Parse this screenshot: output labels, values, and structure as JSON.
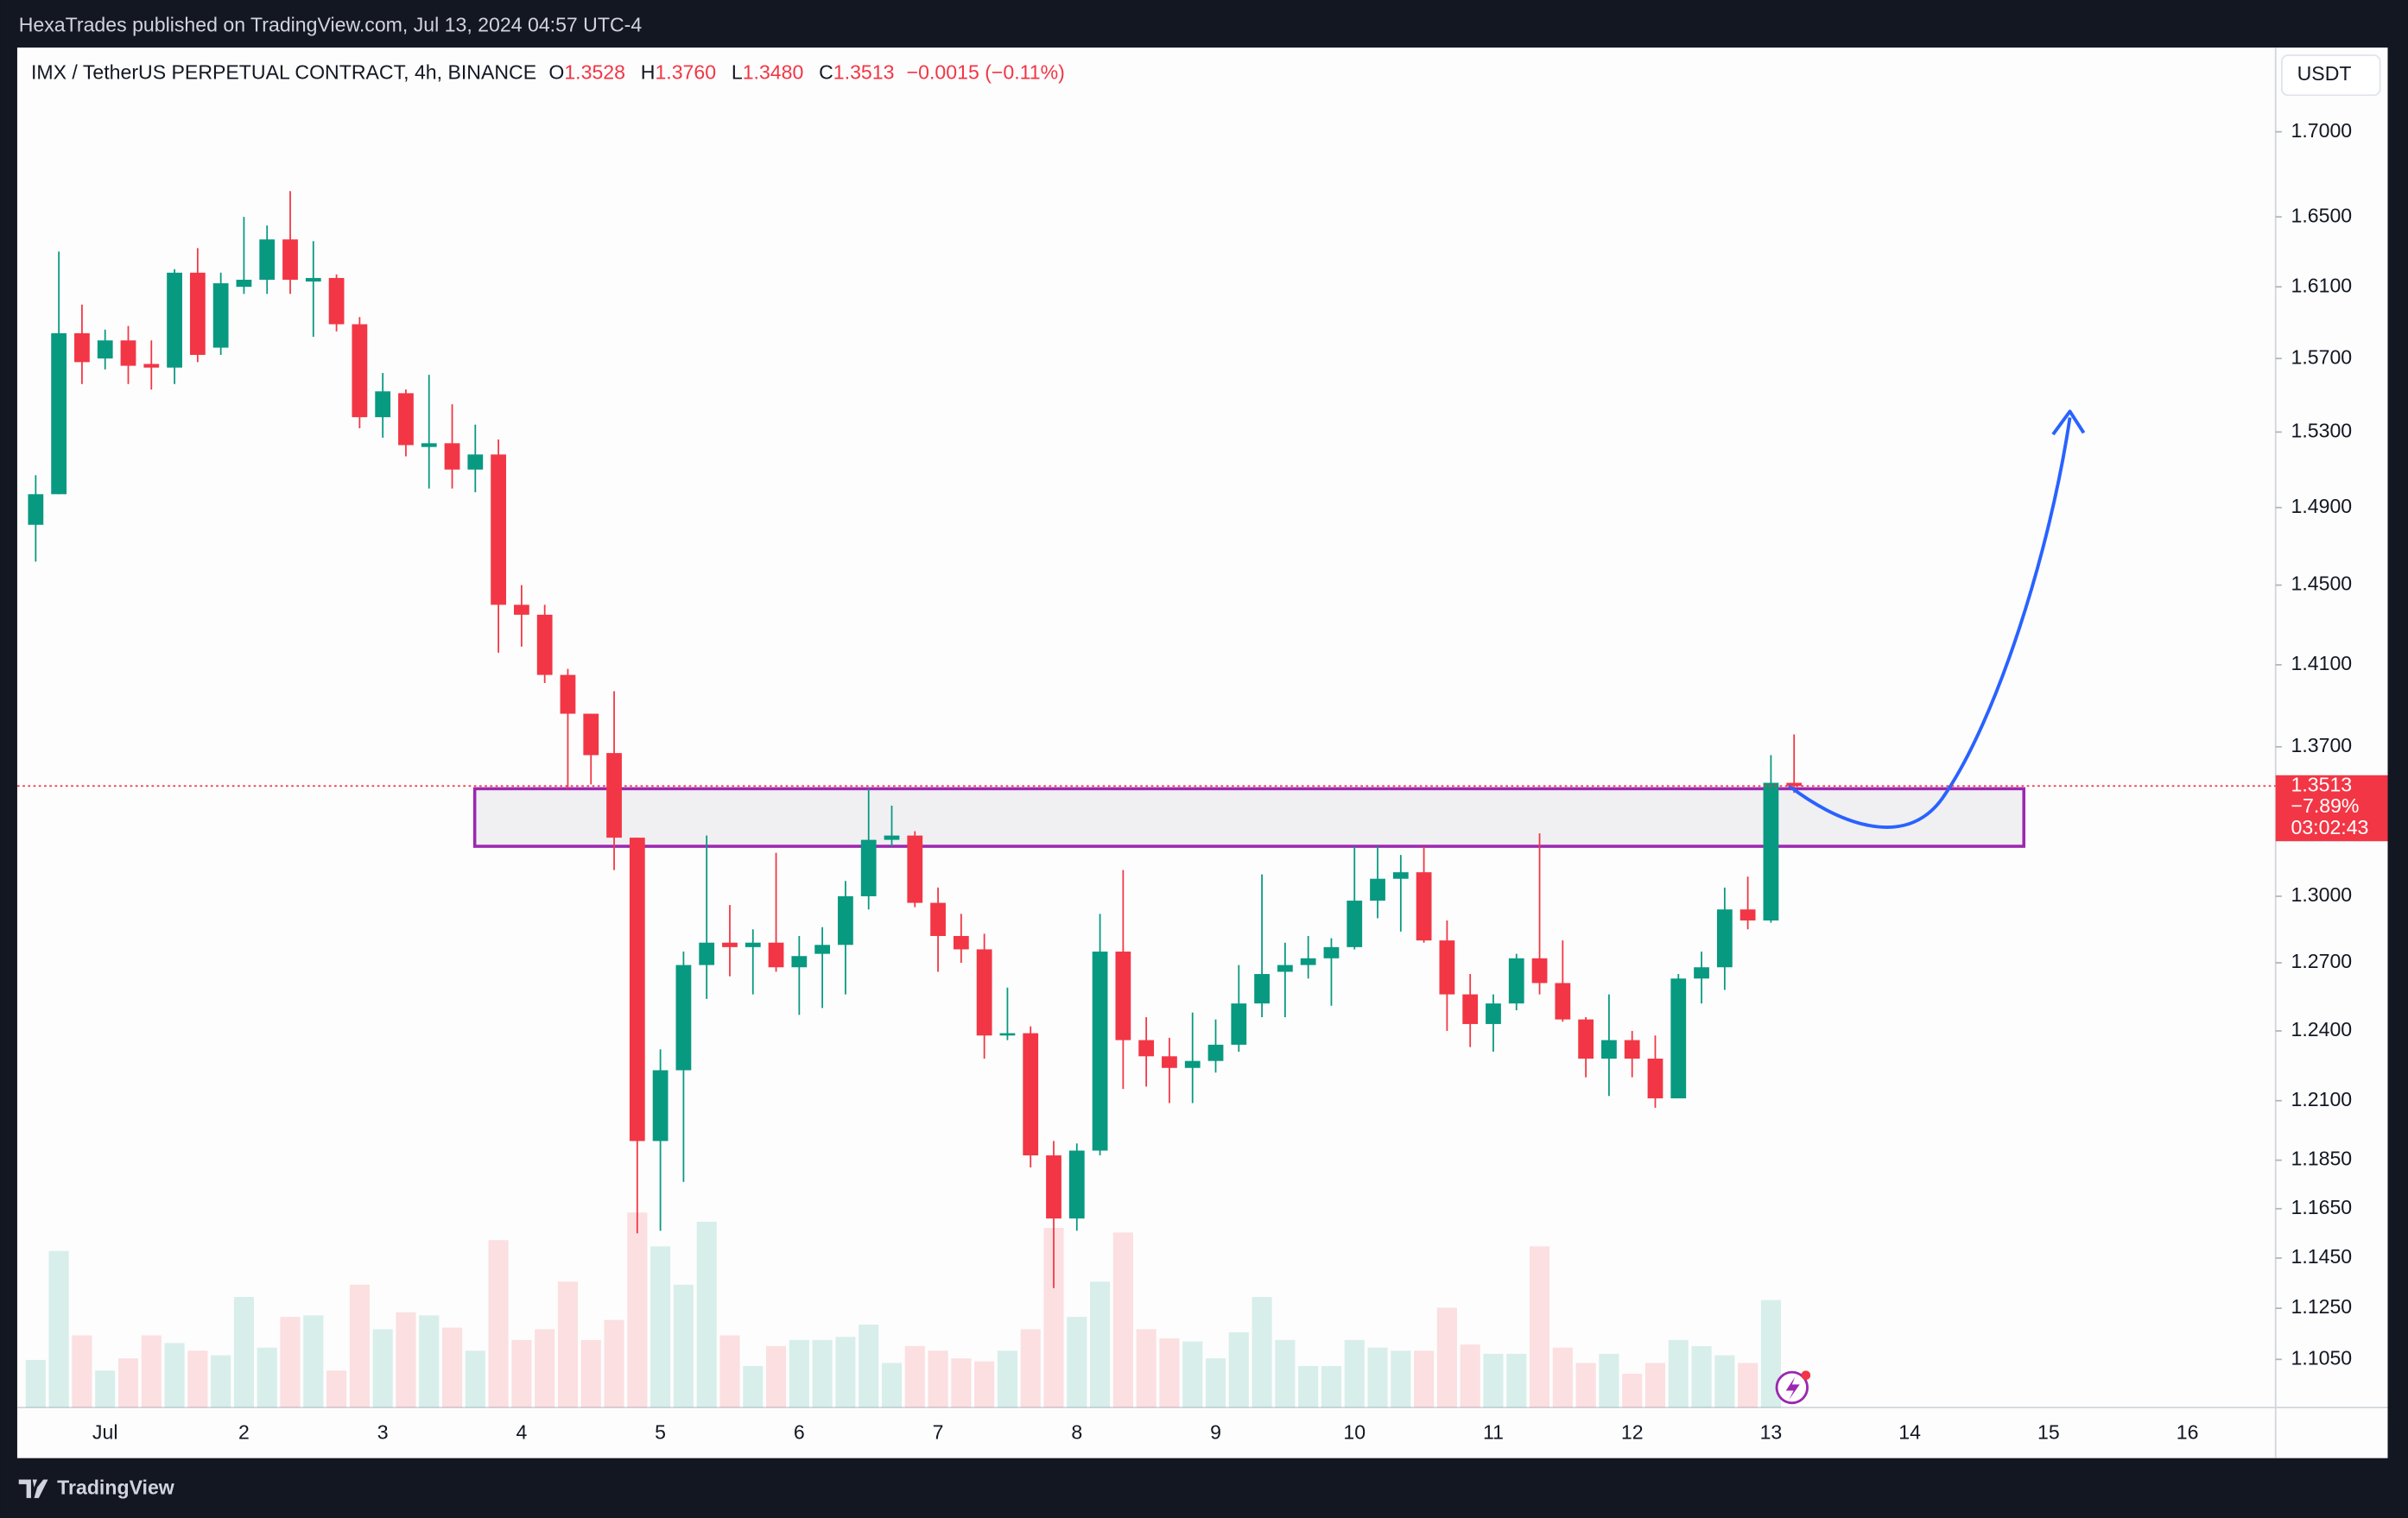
{
  "chart_data": {
    "type": "candlestick",
    "header": "HexaTrades published on TradingView.com, Jul 13, 2024 04:57 UTC-4",
    "symbol": "IMX / TetherUS PERPETUAL CONTRACT, 4h, BINANCE",
    "ohlc": [
      {
        "key": "O",
        "value": "1.3528"
      },
      {
        "key": "H",
        "value": "1.3760"
      },
      {
        "key": "L",
        "value": "1.3480"
      },
      {
        "key": "C",
        "value": "1.3513"
      }
    ],
    "change": "−0.0015 (−0.11%)",
    "currency": "USDT",
    "last_price": 1.3513,
    "price_tag": {
      "change": "−7.89%",
      "countdown": "03:02:43"
    },
    "brand": "TradingView",
    "up_color": "#089981",
    "down_color": "#f23645",
    "log_scale": true,
    "ylim": [
      1.0865,
      1.751
    ],
    "yticks": [
      {
        "value": 1.7,
        "label": "1.7000"
      },
      {
        "value": 1.65,
        "label": "1.6500"
      },
      {
        "value": 1.61,
        "label": "1.6100"
      },
      {
        "value": 1.57,
        "label": "1.5700"
      },
      {
        "value": 1.53,
        "label": "1.5300"
      },
      {
        "value": 1.49,
        "label": "1.4900"
      },
      {
        "value": 1.45,
        "label": "1.4500"
      },
      {
        "value": 1.41,
        "label": "1.4100"
      },
      {
        "value": 1.37,
        "label": "1.3700"
      },
      {
        "value": 1.3,
        "label": "1.3000"
      },
      {
        "value": 1.27,
        "label": "1.2700"
      },
      {
        "value": 1.24,
        "label": "1.2400"
      },
      {
        "value": 1.21,
        "label": "1.2100"
      },
      {
        "value": 1.185,
        "label": "1.1850"
      },
      {
        "value": 1.165,
        "label": "1.1650"
      },
      {
        "value": 1.145,
        "label": "1.1450"
      },
      {
        "value": 1.125,
        "label": "1.1250"
      },
      {
        "value": 1.105,
        "label": "1.1050"
      }
    ],
    "zone": {
      "top": 1.35,
      "bottom": 1.323
    },
    "categories": [
      null,
      null,
      null,
      "Jul",
      null,
      null,
      null,
      null,
      null,
      "2",
      null,
      null,
      null,
      null,
      null,
      "3",
      null,
      null,
      null,
      null,
      null,
      "4",
      null,
      null,
      null,
      null,
      null,
      "5",
      null,
      null,
      null,
      null,
      null,
      "6",
      null,
      null,
      null,
      null,
      null,
      "7",
      null,
      null,
      null,
      null,
      null,
      "8",
      null,
      null,
      null,
      null,
      null,
      "9",
      null,
      null,
      null,
      null,
      null,
      "10",
      null,
      null,
      null,
      null,
      null,
      "11",
      null,
      null,
      null,
      null,
      null,
      "12",
      null,
      null,
      null,
      null,
      null,
      "13",
      null,
      null,
      null,
      null,
      null,
      "14",
      null,
      null,
      null,
      null,
      null,
      "15",
      null,
      null,
      null,
      null,
      null,
      "16",
      null,
      null,
      null
    ],
    "open": [
      1.481,
      1.497,
      1.584,
      1.57,
      1.58,
      1.567,
      1.565,
      1.618,
      1.576,
      1.61,
      1.614,
      1.637,
      1.613,
      1.615,
      1.589,
      1.538,
      1.551,
      1.522,
      1.524,
      1.51,
      1.518,
      1.44,
      1.435,
      1.405,
      1.386,
      1.367,
      1.327,
      1.193,
      1.223,
      1.269,
      1.279,
      1.277,
      1.279,
      1.268,
      1.274,
      1.278,
      1.3,
      1.326,
      1.328,
      1.297,
      1.282,
      1.276,
      1.238,
      1.239,
      1.187,
      1.161,
      1.189,
      1.275,
      1.236,
      1.229,
      1.224,
      1.227,
      1.234,
      1.252,
      1.266,
      1.269,
      1.272,
      1.277,
      1.298,
      1.308,
      1.311,
      1.28,
      1.256,
      1.243,
      1.252,
      1.272,
      1.261,
      1.245,
      1.228,
      1.236,
      1.228,
      1.211,
      1.263,
      1.268,
      1.294,
      1.289,
      1.3528,
      null,
      null,
      null,
      null,
      null,
      null,
      null,
      null,
      null,
      null,
      null,
      null,
      null,
      null,
      null,
      null,
      null,
      null,
      null,
      null
    ],
    "high": [
      1.507,
      1.63,
      1.6,
      1.586,
      1.588,
      1.58,
      1.62,
      1.632,
      1.618,
      1.65,
      1.645,
      1.665,
      1.636,
      1.617,
      1.593,
      1.562,
      1.553,
      1.561,
      1.545,
      1.534,
      1.526,
      1.45,
      1.44,
      1.408,
      1.386,
      1.397,
      1.327,
      1.232,
      1.275,
      1.328,
      1.296,
      1.285,
      1.32,
      1.282,
      1.286,
      1.307,
      1.35,
      1.342,
      1.33,
      1.304,
      1.292,
      1.283,
      1.259,
      1.242,
      1.193,
      1.192,
      1.292,
      1.312,
      1.246,
      1.237,
      1.248,
      1.245,
      1.269,
      1.31,
      1.279,
      1.282,
      1.281,
      1.323,
      1.323,
      1.319,
      1.323,
      1.289,
      1.265,
      1.256,
      1.274,
      1.329,
      1.28,
      1.246,
      1.256,
      1.24,
      1.238,
      1.265,
      1.275,
      1.304,
      1.309,
      1.366,
      1.376,
      null,
      null,
      null,
      null,
      null,
      null,
      null,
      null,
      null,
      null,
      null,
      null,
      null,
      null,
      null,
      null,
      null,
      null,
      null,
      null
    ],
    "low": [
      1.462,
      1.497,
      1.556,
      1.564,
      1.556,
      1.553,
      1.556,
      1.568,
      1.572,
      1.606,
      1.606,
      1.606,
      1.582,
      1.585,
      1.532,
      1.527,
      1.517,
      1.5,
      1.5,
      1.498,
      1.416,
      1.419,
      1.401,
      1.35,
      1.352,
      1.312,
      1.155,
      1.156,
      1.176,
      1.254,
      1.264,
      1.256,
      1.266,
      1.247,
      1.25,
      1.256,
      1.294,
      1.323,
      1.295,
      1.266,
      1.27,
      1.228,
      1.236,
      1.182,
      1.133,
      1.156,
      1.187,
      1.215,
      1.216,
      1.209,
      1.209,
      1.222,
      1.231,
      1.246,
      1.246,
      1.263,
      1.251,
      1.276,
      1.29,
      1.284,
      1.279,
      1.24,
      1.233,
      1.231,
      1.249,
      1.256,
      1.244,
      1.22,
      1.212,
      1.22,
      1.207,
      1.211,
      1.252,
      1.258,
      1.285,
      1.288,
      1.348,
      null,
      null,
      null,
      null,
      null,
      null,
      null,
      null,
      null,
      null,
      null,
      null,
      null,
      null,
      null,
      null,
      null,
      null,
      null,
      null
    ],
    "close": [
      1.497,
      1.584,
      1.568,
      1.58,
      1.566,
      1.565,
      1.618,
      1.572,
      1.612,
      1.614,
      1.637,
      1.614,
      1.615,
      1.589,
      1.538,
      1.552,
      1.523,
      1.524,
      1.51,
      1.518,
      1.44,
      1.435,
      1.405,
      1.386,
      1.366,
      1.327,
      1.193,
      1.223,
      1.269,
      1.279,
      1.277,
      1.279,
      1.268,
      1.273,
      1.278,
      1.3,
      1.326,
      1.328,
      1.297,
      1.282,
      1.276,
      1.238,
      1.239,
      1.187,
      1.161,
      1.189,
      1.275,
      1.236,
      1.229,
      1.224,
      1.227,
      1.234,
      1.252,
      1.265,
      1.269,
      1.272,
      1.277,
      1.298,
      1.308,
      1.311,
      1.28,
      1.256,
      1.243,
      1.252,
      1.272,
      1.261,
      1.245,
      1.228,
      1.236,
      1.228,
      1.211,
      1.263,
      1.268,
      1.294,
      1.289,
      1.3528,
      1.3513,
      null,
      null,
      null,
      null,
      null,
      null,
      null,
      null,
      null,
      null,
      null,
      null,
      null,
      null,
      null,
      null,
      null,
      null,
      null,
      null
    ],
    "volume": [
      31,
      102,
      47,
      24,
      32,
      47,
      42,
      37,
      34,
      72,
      39,
      59,
      60,
      24,
      80,
      51,
      62,
      60,
      52,
      37,
      109,
      44,
      51,
      82,
      44,
      57,
      127,
      105,
      80,
      121,
      47,
      27,
      40,
      44,
      44,
      46,
      54,
      29,
      40,
      37,
      32,
      30,
      37,
      51,
      117,
      59,
      82,
      114,
      51,
      45,
      43,
      32,
      49,
      72,
      44,
      27,
      27,
      44,
      39,
      37,
      37,
      65,
      41,
      35,
      35,
      105,
      39,
      29,
      35,
      22,
      29,
      44,
      40,
      34,
      29,
      70,
      null,
      null,
      null,
      null,
      null,
      null,
      null,
      null,
      null,
      null,
      null,
      null,
      null,
      null,
      null,
      null,
      null,
      null,
      null,
      null,
      null
    ]
  }
}
